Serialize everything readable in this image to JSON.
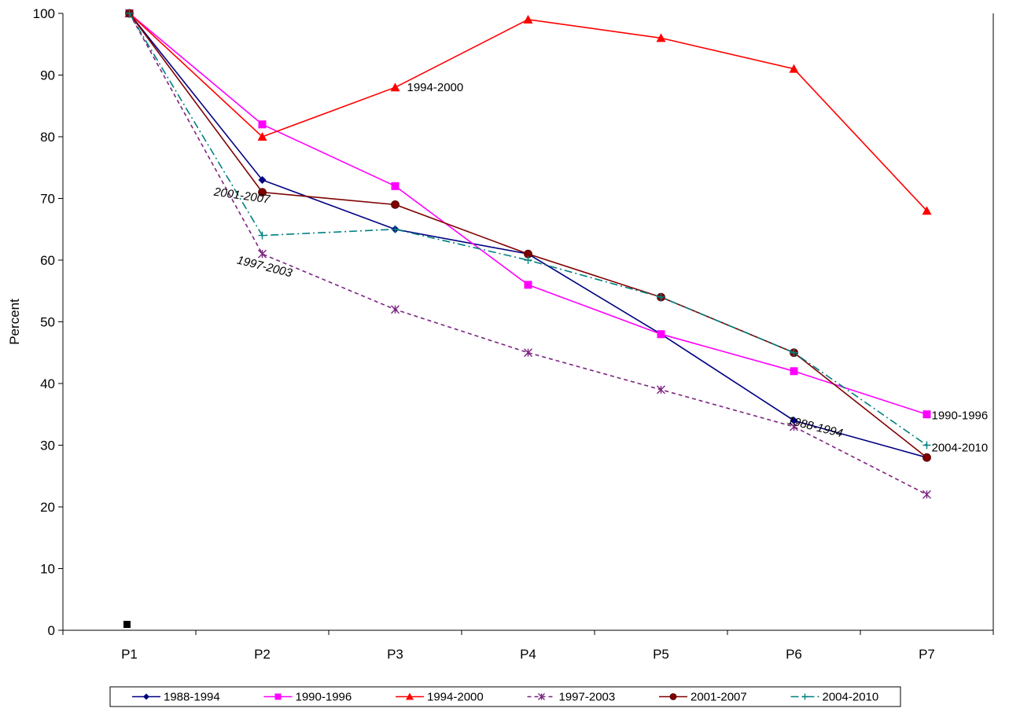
{
  "chart_data": {
    "type": "line",
    "title": "",
    "xlabel": "",
    "ylabel": "Percent",
    "ylim": [
      0,
      100
    ],
    "yticks": [
      0,
      10,
      20,
      30,
      40,
      50,
      60,
      70,
      80,
      90,
      100
    ],
    "categories": [
      "P1",
      "P2",
      "P3",
      "P4",
      "P5",
      "P6",
      "P7"
    ],
    "grid": false,
    "legend_position": "bottom",
    "series": [
      {
        "name": "1988-1994",
        "values": [
          100,
          73,
          65,
          61,
          48,
          34,
          28
        ],
        "color": "#000080",
        "marker": "diamond",
        "dash": "solid"
      },
      {
        "name": "1990-1996",
        "values": [
          100,
          82,
          72,
          56,
          48,
          42,
          35
        ],
        "color": "#ff00ff",
        "marker": "square",
        "dash": "solid"
      },
      {
        "name": "1994-2000",
        "values": [
          100,
          80,
          88,
          99,
          96,
          91,
          68
        ],
        "color": "#ff0000",
        "marker": "triangle",
        "dash": "solid"
      },
      {
        "name": "1997-2003",
        "values": [
          100,
          61,
          52,
          45,
          39,
          33,
          22
        ],
        "color": "#7b2481",
        "marker": "star",
        "dash": "dashed"
      },
      {
        "name": "2001-2007",
        "values": [
          100,
          71,
          69,
          61,
          54,
          45,
          28
        ],
        "color": "#800000",
        "marker": "circle",
        "dash": "solid"
      },
      {
        "name": "2004-2010",
        "values": [
          100,
          64,
          65,
          60,
          54,
          45,
          30
        ],
        "color": "#008080",
        "marker": "plus",
        "dash": "dashdot"
      }
    ],
    "annotations": [
      {
        "text": "1994-2000",
        "series": 2,
        "point": 2,
        "italic": false,
        "rotate": 0
      },
      {
        "text": "2001-2007",
        "series": 4,
        "point": 1,
        "italic": true,
        "rotate": 8
      },
      {
        "text": "1997-2003",
        "series": 3,
        "point": 1,
        "italic": true,
        "rotate": 14
      },
      {
        "text": "1988-1994",
        "series": 0,
        "point": 5,
        "italic": true,
        "rotate": 14
      },
      {
        "text": "1990-1996",
        "series": 1,
        "point": 6,
        "italic": false,
        "rotate": 0
      },
      {
        "text": "2004-2010",
        "series": 5,
        "point": 6,
        "italic": false,
        "rotate": 0
      }
    ]
  }
}
